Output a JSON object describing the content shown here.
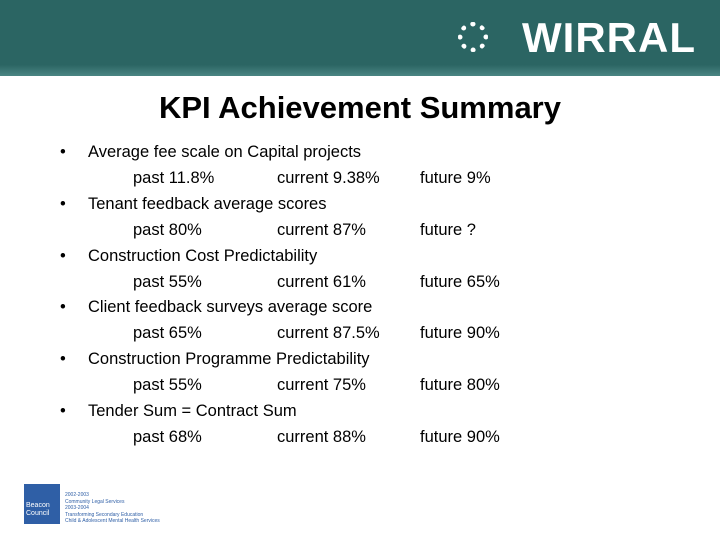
{
  "header": {
    "logo": "WIRRAL"
  },
  "title": "KPI Achievement Summary",
  "items": [
    {
      "heading": "Average fee scale on Capital projects",
      "past": "past 11.8%",
      "current": "current 9.38%",
      "future": "future 9%"
    },
    {
      "heading": "Tenant feedback average scores",
      "past": "past 80%",
      "current": "current 87%",
      "future": "future ?"
    },
    {
      "heading": "Construction Cost Predictability",
      "past": "past 55%",
      "current": "current 61%",
      "future": "future 65%"
    },
    {
      "heading": "Client feedback surveys average score",
      "past": "past 65%",
      "current": "current 87.5%",
      "future": "future 90%"
    },
    {
      "heading": "Construction Programme Predictability",
      "past": "past 55%",
      "current": "current 75%",
      "future": "future 80%"
    },
    {
      "heading": "Tender Sum = Contract Sum",
      "past": "past 68%",
      "current": "current 88%",
      "future": "future 90%"
    }
  ],
  "footer": {
    "badge": "Beacon Council",
    "lines": [
      "2002-2003",
      "Community Legal Services",
      "2003-2004",
      "Transforming Secondary Education",
      "Child & Adolescent Mental Health Services"
    ]
  }
}
